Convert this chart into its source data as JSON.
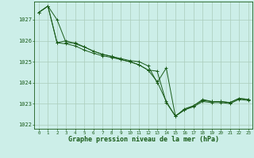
{
  "background_color": "#cceee8",
  "grid_color": "#aaccbb",
  "line_color": "#1a5c1a",
  "marker_color": "#1a5c1a",
  "xlabel": "Graphe pression niveau de la mer (hPa)",
  "xlabel_color": "#1a5c1a",
  "ylim": [
    1021.8,
    1027.85
  ],
  "xlim": [
    -0.5,
    23.5
  ],
  "yticks": [
    1022,
    1023,
    1024,
    1025,
    1026,
    1027
  ],
  "xticks": [
    0,
    1,
    2,
    3,
    4,
    5,
    6,
    7,
    8,
    9,
    10,
    11,
    12,
    13,
    14,
    15,
    16,
    17,
    18,
    19,
    20,
    21,
    22,
    23
  ],
  "series": [
    [
      1027.35,
      1027.65,
      1027.0,
      1025.9,
      1025.9,
      1025.7,
      1025.5,
      1025.35,
      1025.25,
      1025.15,
      1025.05,
      1025.0,
      1024.8,
      1024.0,
      1024.7,
      1022.4,
      1022.7,
      1022.9,
      1023.15,
      1023.1,
      1023.1,
      1023.05,
      1023.25,
      1023.2
    ],
    [
      1027.35,
      1027.65,
      1025.9,
      1025.85,
      1025.75,
      1025.55,
      1025.4,
      1025.28,
      1025.2,
      1025.1,
      1025.0,
      1024.85,
      1024.6,
      1024.55,
      1023.05,
      1022.4,
      1022.7,
      1022.85,
      1023.1,
      1023.05,
      1023.05,
      1023.0,
      1023.2,
      1023.15
    ],
    [
      1027.35,
      1027.65,
      1025.9,
      1026.0,
      1025.85,
      1025.7,
      1025.5,
      1025.35,
      1025.25,
      1025.1,
      1025.0,
      1024.85,
      1024.6,
      1024.05,
      1023.1,
      1022.4,
      1022.75,
      1022.9,
      1023.2,
      1023.1,
      1023.1,
      1023.05,
      1023.25,
      1023.2
    ]
  ]
}
